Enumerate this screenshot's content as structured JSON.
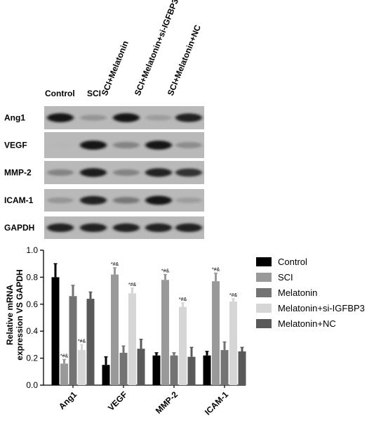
{
  "blot": {
    "lanes": [
      "Control",
      "SCI",
      "SCI+Melatonin",
      "SCI+Melatonin+si-IGFBP3",
      "SCI+Melatonin+NC"
    ],
    "rows": [
      {
        "label": "Ang1",
        "intensity": [
          0.95,
          0.35,
          0.95,
          0.3,
          0.9
        ]
      },
      {
        "label": "VEGF",
        "intensity": [
          0.05,
          0.98,
          0.45,
          0.95,
          0.4
        ]
      },
      {
        "label": "MMP-2",
        "intensity": [
          0.45,
          0.92,
          0.45,
          0.88,
          0.8
        ]
      },
      {
        "label": "ICAM-1",
        "intensity": [
          0.35,
          0.9,
          0.5,
          0.95,
          0.3
        ]
      },
      {
        "label": "GAPDH",
        "intensity": [
          0.9,
          0.9,
          0.9,
          0.9,
          0.9
        ]
      }
    ]
  },
  "chart_data": {
    "type": "bar",
    "categories": [
      "Ang1",
      "VEGF",
      "MMP-2",
      "ICAM-1"
    ],
    "ylabel": "Relative mRNA expression VS GAPDH",
    "ylim": [
      0,
      1.0
    ],
    "yticks": [
      "0.0",
      "0.2",
      "0.4",
      "0.6",
      "0.8",
      "1.0"
    ],
    "legend_position": "right",
    "series": [
      {
        "name": "Control",
        "color": "#000000",
        "values": [
          0.8,
          0.15,
          0.22,
          0.22
        ],
        "errors": [
          0.1,
          0.06,
          0.02,
          0.03
        ]
      },
      {
        "name": "SCI",
        "color": "#999999",
        "values": [
          0.16,
          0.82,
          0.78,
          0.77
        ],
        "errors": [
          0.03,
          0.05,
          0.04,
          0.06
        ],
        "annotations": [
          "*#&",
          "*#&",
          "*#&",
          "*#&"
        ]
      },
      {
        "name": "Melatonin",
        "color": "#737373",
        "values": [
          0.66,
          0.24,
          0.22,
          0.26
        ],
        "errors": [
          0.08,
          0.05,
          0.02,
          0.06
        ]
      },
      {
        "name": "Melatonin+si-IGFBP3",
        "color": "#d6d6d6",
        "values": [
          0.26,
          0.68,
          0.58,
          0.62
        ],
        "errors": [
          0.04,
          0.04,
          0.03,
          0.02
        ],
        "annotations": [
          "*#&",
          "*#&",
          "*#&",
          "*#&"
        ]
      },
      {
        "name": "Melatonin+NC",
        "color": "#595959",
        "values": [
          0.64,
          0.27,
          0.21,
          0.25
        ],
        "errors": [
          0.05,
          0.07,
          0.07,
          0.03
        ]
      }
    ]
  }
}
